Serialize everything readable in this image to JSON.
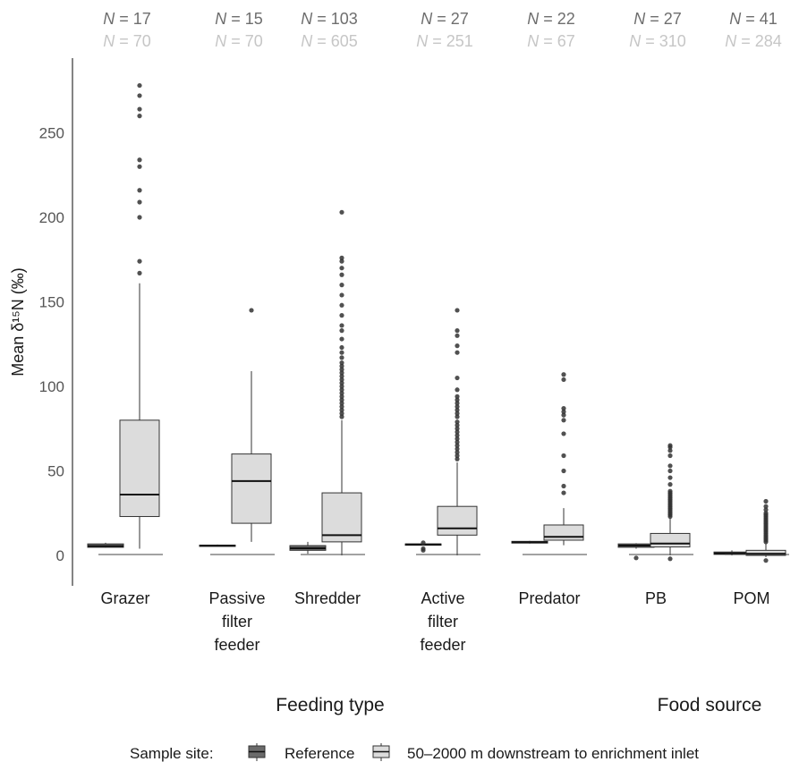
{
  "chart_data": {
    "type": "boxplot",
    "ylabel": "Mean δ¹⁵N (‰)",
    "ylim": [
      -18,
      295
    ],
    "yticks": [
      0,
      50,
      100,
      150,
      200,
      250
    ],
    "categories": [
      {
        "label": [
          "Grazer"
        ],
        "group": "Feeding type",
        "n": {
          "Reference": "17",
          "50–2000 m downstream to enrichment inlet": "70"
        }
      },
      {
        "label": [
          "Passive",
          "filter",
          "feeder"
        ],
        "group": "Feeding type",
        "n": {
          "Reference": "15",
          "50–2000 m downstream to enrichment inlet": "70"
        }
      },
      {
        "label": [
          "Shredder"
        ],
        "group": "Feeding type",
        "n": {
          "Reference": "103",
          "50–2000 m downstream to enrichment inlet": "605"
        }
      },
      {
        "label": [
          "Active",
          "filter",
          "feeder"
        ],
        "group": "Feeding type",
        "n": {
          "Reference": "27",
          "50–2000 m downstream to enrichment inlet": "251"
        }
      },
      {
        "label": [
          "Predator"
        ],
        "group": "Feeding type",
        "n": {
          "Reference": "22",
          "50–2000 m downstream to enrichment inlet": "67"
        }
      },
      {
        "label": [
          "PB"
        ],
        "group": "Food source",
        "n": {
          "Reference": "27",
          "50–2000 m downstream to enrichment inlet": "310"
        }
      },
      {
        "label": [
          "POM"
        ],
        "group": "Food source",
        "n": {
          "Reference": "41",
          "50–2000 m downstream to enrichment inlet": "284"
        }
      }
    ],
    "groups": [
      "Feeding type",
      "Food source"
    ],
    "series": [
      {
        "name": "Reference",
        "color": "#6b6b6b",
        "boxes": [
          {
            "min": 4.5,
            "q1": 4.8,
            "median": 5.5,
            "q3": 6.8,
            "max": 7.5,
            "outliers": []
          },
          {
            "min": 5.2,
            "q1": 5.4,
            "median": 5.8,
            "q3": 6.1,
            "max": 6.4,
            "outliers": []
          },
          {
            "min": 1.0,
            "q1": 3.0,
            "median": 4.2,
            "q3": 5.8,
            "max": 8.0,
            "outliers": []
          },
          {
            "min": 6.0,
            "q1": 6.2,
            "median": 6.5,
            "q3": 6.8,
            "max": 7.0,
            "outliers": [
              7.5,
              4.0,
              3.0
            ]
          },
          {
            "min": 7.0,
            "q1": 7.3,
            "median": 7.8,
            "q3": 8.3,
            "max": 8.6,
            "outliers": []
          },
          {
            "min": 4.0,
            "q1": 4.8,
            "median": 5.8,
            "q3": 6.8,
            "max": 7.2,
            "outliers": [
              -1.5
            ]
          },
          {
            "min": 0.0,
            "q1": 0.6,
            "median": 1.2,
            "q3": 2.0,
            "max": 3.0,
            "outliers": []
          }
        ]
      },
      {
        "name": "50–2000 m downstream to enrichment inlet",
        "color": "#dcdcdc",
        "boxes": [
          {
            "min": 4,
            "q1": 23,
            "median": 36,
            "q3": 80,
            "max": 161,
            "outliers": [
              167,
              174,
              200,
              209,
              216,
              230,
              234,
              260,
              264,
              272,
              278
            ]
          },
          {
            "min": 8,
            "q1": 19,
            "median": 44,
            "q3": 60,
            "max": 109,
            "outliers": [
              145
            ]
          },
          {
            "min": 0,
            "q1": 8,
            "median": 12,
            "q3": 37,
            "max": 80,
            "outliers": [
              82,
              84,
              86,
              88,
              90,
              92,
              94,
              96,
              98,
              100,
              102,
              104,
              106,
              108,
              110,
              112,
              114,
              117,
              120,
              123,
              128,
              133,
              136,
              142,
              148,
              154,
              160,
              166,
              170,
              174,
              176,
              203
            ]
          },
          {
            "min": 0,
            "q1": 12,
            "median": 16,
            "q3": 29,
            "max": 55,
            "outliers": [
              57,
              59,
              61,
              63,
              65,
              67,
              69,
              71,
              73,
              75,
              77,
              79,
              82,
              84,
              86,
              88,
              90,
              92,
              94,
              98,
              105,
              120,
              124,
              130,
              133,
              145
            ]
          },
          {
            "min": 6,
            "q1": 9,
            "median": 11,
            "q3": 18,
            "max": 28,
            "outliers": [
              37,
              41,
              50,
              59,
              72,
              80,
              83,
              85,
              87,
              104,
              107
            ]
          },
          {
            "min": 0,
            "q1": 5,
            "median": 7,
            "q3": 13,
            "max": 22,
            "outliers": [
              23,
              24,
              25,
              26,
              27,
              28,
              29,
              30,
              31,
              32,
              33,
              34,
              35,
              36,
              37,
              38,
              42,
              46,
              50,
              53,
              59,
              62,
              64,
              65,
              -2
            ]
          },
          {
            "min": -1,
            "q1": 0,
            "median": 1,
            "q3": 3,
            "max": 7,
            "outliers": [
              8,
              9,
              10,
              11,
              12,
              13,
              14,
              15,
              16,
              17,
              18,
              19,
              20,
              21,
              22,
              23,
              24,
              25,
              27,
              29,
              32,
              -3
            ]
          }
        ]
      }
    ],
    "legend": {
      "title": "Sample site:",
      "position": "bottom"
    }
  }
}
